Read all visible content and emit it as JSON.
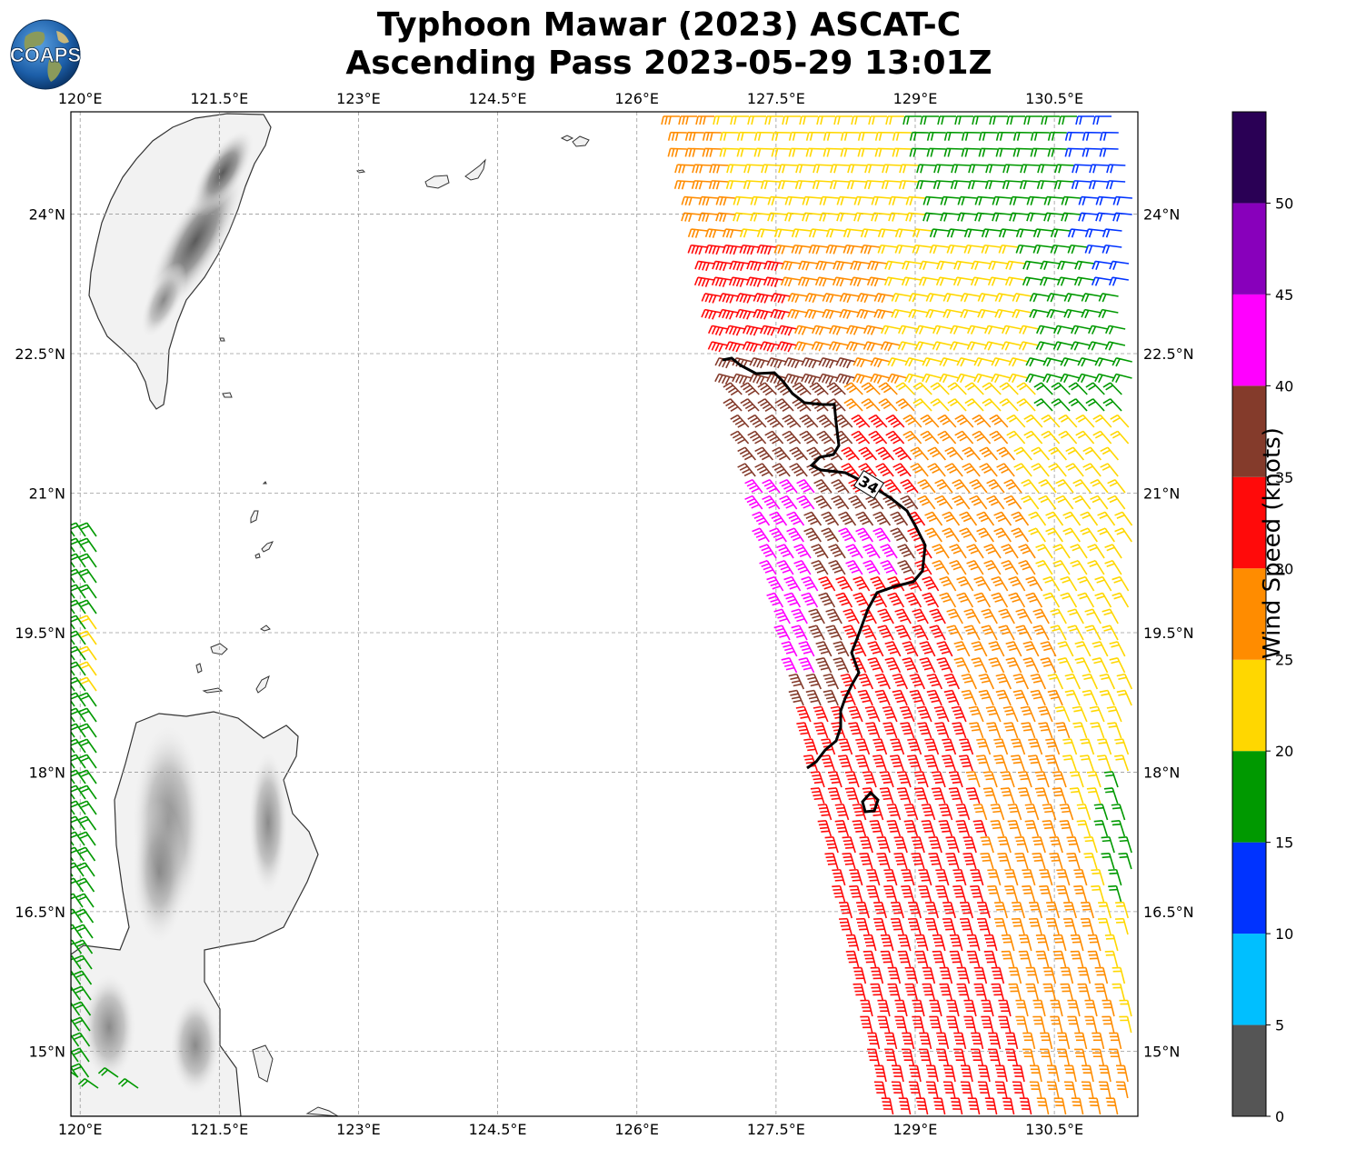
{
  "title_line1": "Typhoon Mawar (2023) ASCAT-C",
  "title_line2": "Ascending Pass 2023-05-29 13:01Z",
  "logo_text": "COAPS",
  "lon_ticks": [
    "120°E",
    "121.5°E",
    "123°E",
    "124.5°E",
    "126°E",
    "127.5°E",
    "129°E",
    "130.5°E"
  ],
  "lat_ticks": [
    "24°N",
    "22.5°N",
    "21°N",
    "19.5°N",
    "18°N",
    "16.5°N",
    "15°N"
  ],
  "contour_label": "34",
  "colorbar": {
    "label": "Wind Speed (knots)",
    "ticks": [
      "0",
      "5",
      "10",
      "15",
      "20",
      "25",
      "30",
      "35",
      "40",
      "45",
      "50"
    ],
    "colors": [
      "#555555",
      "#00bfff",
      "#0033ff",
      "#009900",
      "#ffd700",
      "#ff8c00",
      "#ff0a0a",
      "#843b2b",
      "#ff00ff",
      "#8800bb",
      "#2a0055"
    ]
  },
  "map": {
    "lon_range": [
      119.9,
      131.4
    ],
    "lat_range": [
      14.3,
      25.1
    ],
    "land_color": "#f2f2f2",
    "coast_color": "#333333"
  }
}
